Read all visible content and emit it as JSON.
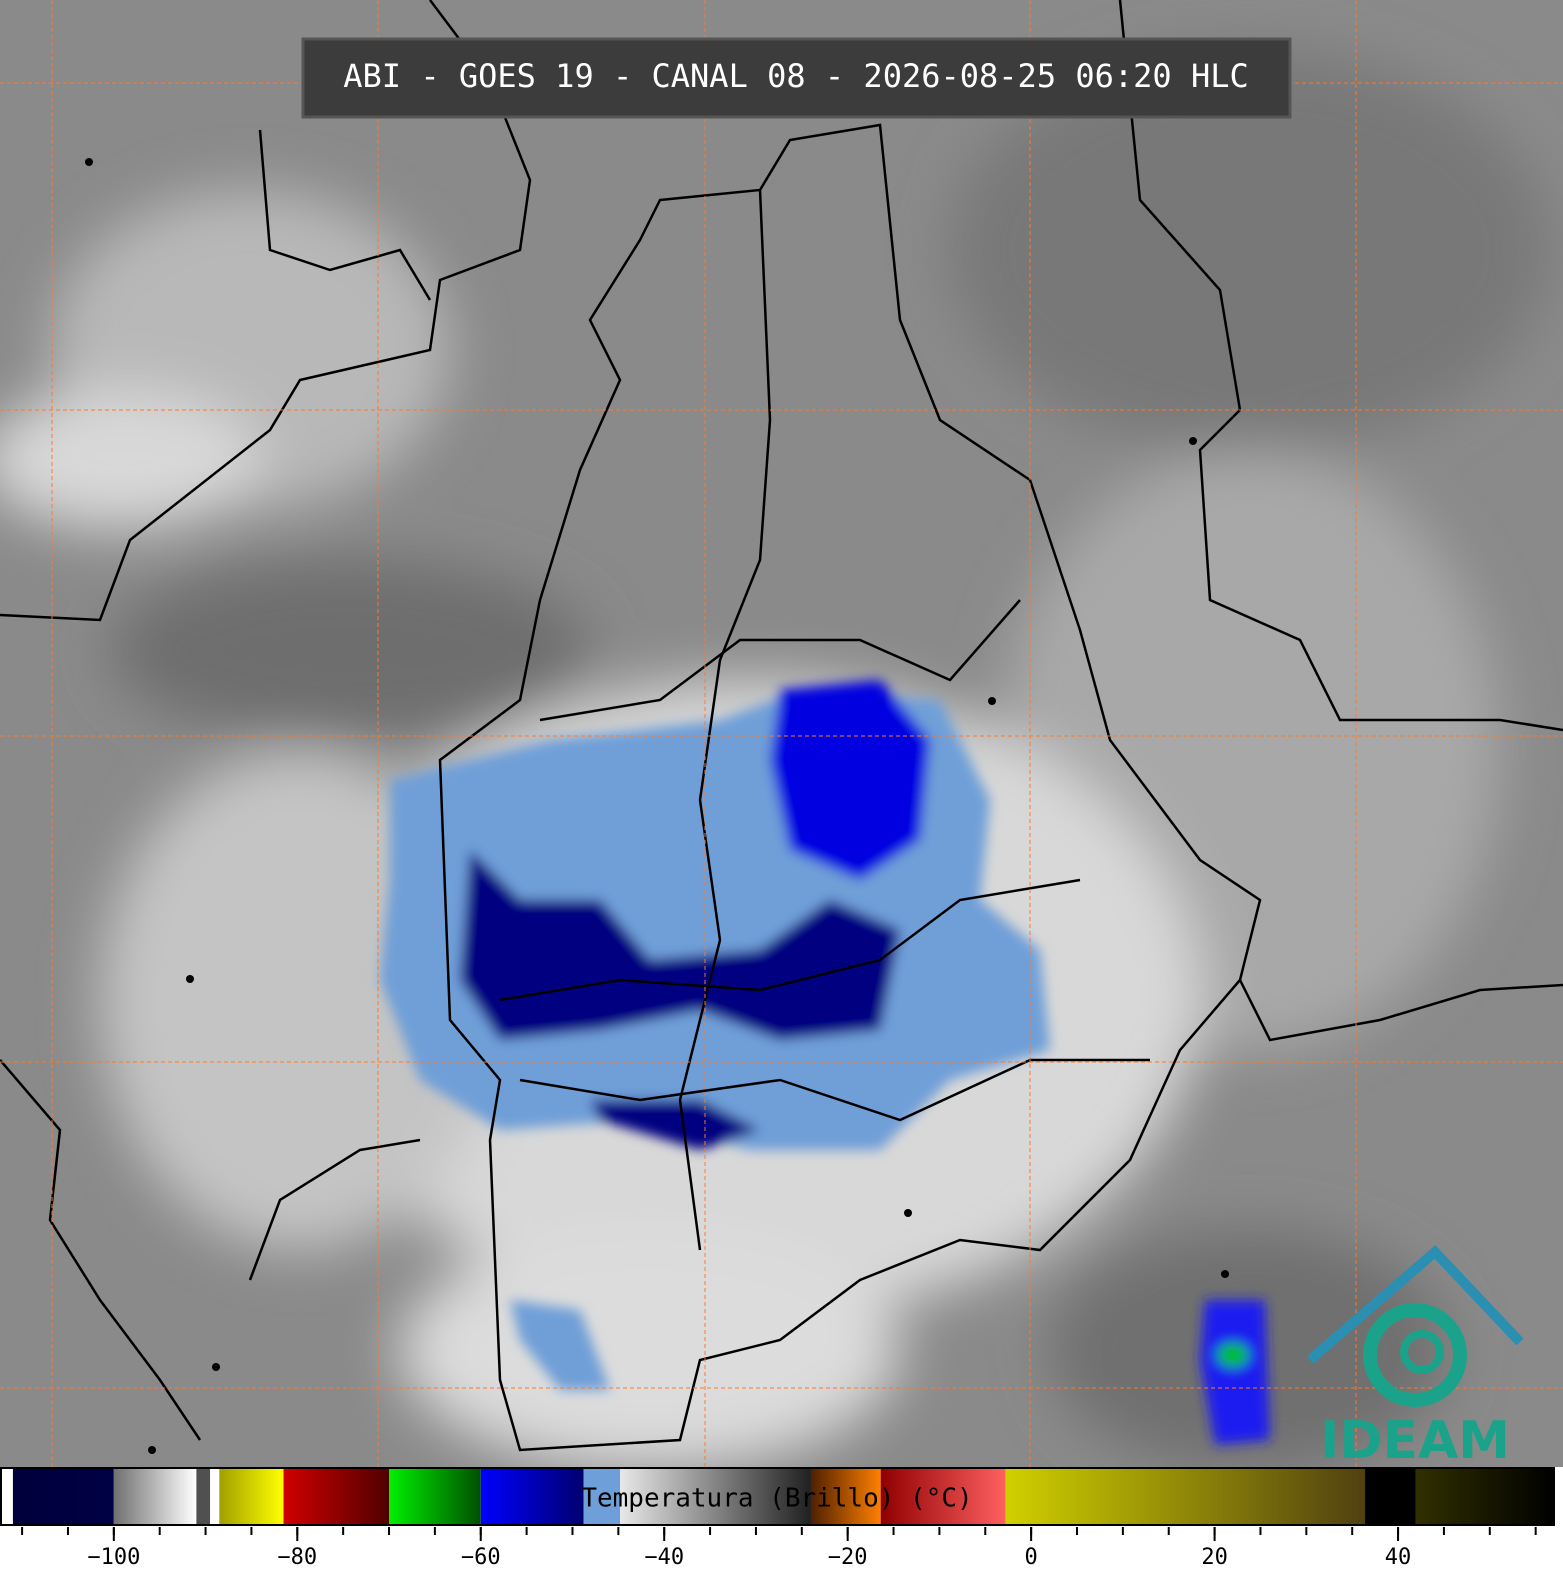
{
  "header": {
    "title": "ABI - GOES 19 - CANAL 08 - 2026-08-25 06:20 HLC"
  },
  "logo": {
    "text": "IDEAM"
  },
  "colorbar": {
    "label": "Temperatura (Brillo) (°C)",
    "range": [
      -112.3,
      57
    ],
    "ticks": [
      {
        "value": -100,
        "label": "−100"
      },
      {
        "value": -80,
        "label": "−80"
      },
      {
        "value": -60,
        "label": "−60"
      },
      {
        "value": -40,
        "label": "−40"
      },
      {
        "value": -20,
        "label": "−20"
      },
      0,
      20,
      40
    ],
    "minor_step": 5,
    "segments": [
      {
        "from": -112.3,
        "to": -111,
        "colors": [
          "#ffffff",
          "#ffffff"
        ]
      },
      {
        "from": -111,
        "to": -100,
        "colors": [
          "#00003a",
          "#000046"
        ]
      },
      {
        "from": -100,
        "to": -91,
        "colors": [
          "#707070",
          "#ffffff"
        ]
      },
      {
        "from": -91,
        "to": -89.5,
        "colors": [
          "#505050",
          "#505050"
        ]
      },
      {
        "from": -89.5,
        "to": -88.5,
        "colors": [
          "#ffffff",
          "#ffffff"
        ]
      },
      {
        "from": -88.5,
        "to": -81.5,
        "colors": [
          "#a0a000",
          "#ffff00"
        ]
      },
      {
        "from": -81.5,
        "to": -70,
        "colors": [
          "#d00000",
          "#500000"
        ]
      },
      {
        "from": -70,
        "to": -60,
        "colors": [
          "#00f000",
          "#005000"
        ]
      },
      {
        "from": -60,
        "to": -48.8,
        "colors": [
          "#0000ff",
          "#000070"
        ]
      },
      {
        "from": -48.8,
        "to": -44.8,
        "colors": [
          "#6f9fd8",
          "#6f9fd8"
        ]
      },
      {
        "from": -44.8,
        "to": -24,
        "colors": [
          "#e8e8e8",
          "#202020"
        ]
      },
      {
        "from": -24,
        "to": -16.4,
        "colors": [
          "#502000",
          "#ff8000"
        ]
      },
      {
        "from": -16.4,
        "to": -2.8,
        "colors": [
          "#900000",
          "#ff6060"
        ]
      },
      {
        "from": -2.8,
        "to": 36.4,
        "colors": [
          "#d0d000",
          "#504010"
        ]
      },
      {
        "from": 36.4,
        "to": 41.9,
        "colors": [
          "#000000",
          "#000000"
        ]
      },
      {
        "from": 41.9,
        "to": 57,
        "colors": [
          "#303000",
          "#000000"
        ]
      }
    ]
  }
}
